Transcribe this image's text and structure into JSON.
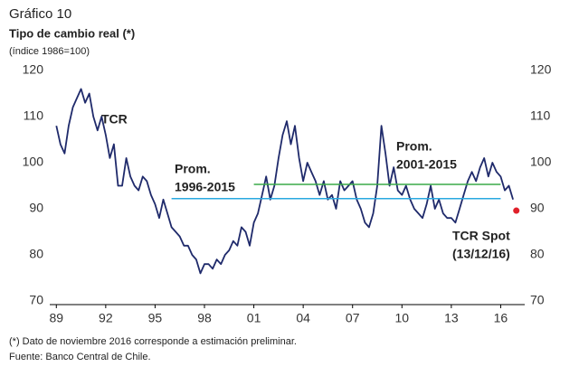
{
  "chart_data": {
    "type": "line",
    "title": "Gráfico 10",
    "subtitle": "Tipo de cambio real (*)",
    "unit_label": "(índice 1986=100)",
    "notes": [
      "(*) Dato de noviembre 2016 corresponde a estimación preliminar.",
      "Fuente: Banco Central de Chile."
    ],
    "xlim": [
      1988.6,
      2017.46
    ],
    "ylim": [
      70,
      120
    ],
    "xticks": [
      {
        "value": 1989,
        "label": "89"
      },
      {
        "value": 1992,
        "label": "92"
      },
      {
        "value": 1995,
        "label": "95"
      },
      {
        "value": 1998,
        "label": "98"
      },
      {
        "value": 2001,
        "label": "01"
      },
      {
        "value": 2004,
        "label": "04"
      },
      {
        "value": 2007,
        "label": "07"
      },
      {
        "value": 2010,
        "label": "10"
      },
      {
        "value": 2013,
        "label": "13"
      },
      {
        "value": 2016,
        "label": "16"
      }
    ],
    "yticks": [
      70,
      80,
      90,
      100,
      110,
      120
    ],
    "series": [
      {
        "name": "TCR",
        "color": "#1f2a6b",
        "label": [
          "TCR"
        ],
        "x": [
          1989,
          1989.25,
          1989.5,
          1989.75,
          1990,
          1990.25,
          1990.5,
          1990.75,
          1991,
          1991.25,
          1991.5,
          1991.75,
          1992,
          1992.25,
          1992.5,
          1992.75,
          1993,
          1993.25,
          1993.5,
          1993.75,
          1994,
          1994.25,
          1994.5,
          1994.75,
          1995,
          1995.25,
          1995.5,
          1995.75,
          1996,
          1996.25,
          1996.5,
          1996.75,
          1997,
          1997.25,
          1997.5,
          1997.75,
          1998,
          1998.25,
          1998.5,
          1998.75,
          1999,
          1999.25,
          1999.5,
          1999.75,
          2000,
          2000.25,
          2000.5,
          2000.75,
          2001,
          2001.25,
          2001.5,
          2001.75,
          2002,
          2002.25,
          2002.5,
          2002.75,
          2003,
          2003.25,
          2003.5,
          2003.75,
          2004,
          2004.25,
          2004.5,
          2004.75,
          2005,
          2005.25,
          2005.5,
          2005.75,
          2006,
          2006.25,
          2006.5,
          2006.75,
          2007,
          2007.25,
          2007.5,
          2007.75,
          2008,
          2008.25,
          2008.5,
          2008.75,
          2009,
          2009.25,
          2009.5,
          2009.75,
          2010,
          2010.25,
          2010.5,
          2010.75,
          2011,
          2011.25,
          2011.5,
          2011.75,
          2012,
          2012.25,
          2012.5,
          2012.75,
          2013,
          2013.25,
          2013.5,
          2013.75,
          2014,
          2014.25,
          2014.5,
          2014.75,
          2015,
          2015.25,
          2015.5,
          2015.75,
          2016,
          2016.25,
          2016.5,
          2016.75
        ],
        "values": [
          108,
          104,
          102,
          108,
          112,
          114,
          116,
          113,
          115,
          110,
          107,
          110,
          106,
          101,
          104,
          95,
          95,
          101,
          97,
          95,
          94,
          97,
          96,
          93,
          91,
          88,
          92,
          89,
          86,
          85,
          84,
          82,
          82,
          80,
          79,
          76,
          78,
          78,
          77,
          79,
          78,
          80,
          81,
          83,
          82,
          86,
          85,
          82,
          87,
          89,
          93,
          97,
          92,
          95,
          101,
          106,
          109,
          104,
          108,
          101,
          96,
          100,
          98,
          96,
          93,
          96,
          92,
          93,
          90,
          96,
          94,
          95,
          96,
          92,
          90,
          87,
          86,
          89,
          95,
          108,
          102,
          95,
          99,
          94,
          93,
          95,
          92,
          90,
          89,
          88,
          91,
          95,
          90,
          92,
          89,
          88,
          88,
          87,
          90,
          93,
          96,
          98,
          96,
          99,
          101,
          97,
          100,
          98,
          97,
          94,
          95,
          92
        ]
      },
      {
        "name": "Prom. 1996-2015",
        "color": "#29a8e0",
        "label": [
          "Prom.",
          "1996-2015"
        ],
        "x": [
          1996,
          2016
        ],
        "values": [
          92.2,
          92.2
        ]
      },
      {
        "name": "Prom. 2001-2015",
        "color": "#3aaa48",
        "label": [
          "Prom.",
          "2001-2015"
        ],
        "x": [
          2001,
          2016
        ],
        "values": [
          95.3,
          95.3
        ]
      },
      {
        "name": "TCR Spot",
        "color": "#e0202a",
        "label": [
          "TCR Spot",
          "(13/12/16)"
        ],
        "x": [
          2016.95
        ],
        "values": [
          89.6
        ],
        "marker": true
      }
    ]
  }
}
